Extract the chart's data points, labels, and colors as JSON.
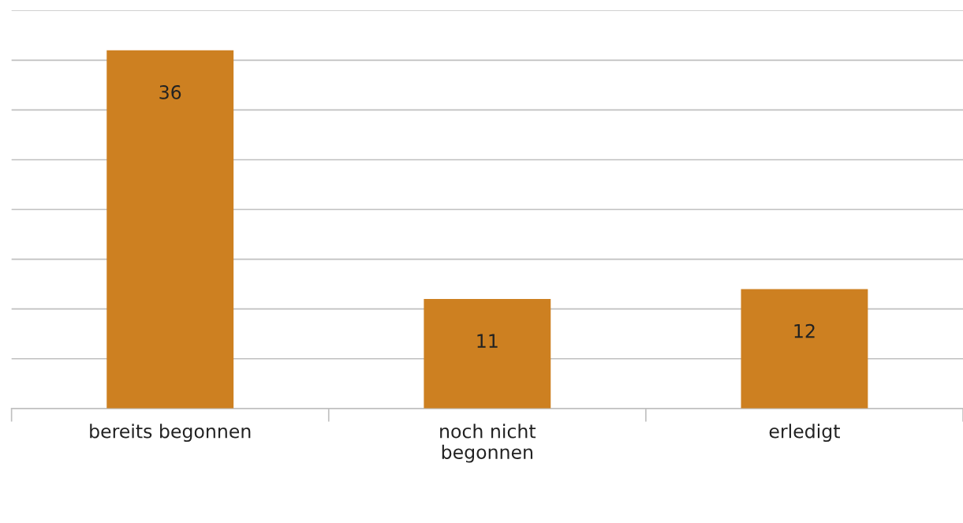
{
  "chart_data": {
    "type": "bar",
    "categories": [
      "bereits begonnen",
      "noch nicht begonnen",
      "erledigt"
    ],
    "values": [
      36,
      11,
      12
    ],
    "color": "#cd8021",
    "data_labels": true,
    "ylim": [
      0,
      40
    ],
    "yticks": [
      {
        "value": 0,
        "label": null
      },
      {
        "value": 5,
        "label": null
      },
      {
        "value": 10,
        "label": null
      },
      {
        "value": 15,
        "label": null
      },
      {
        "value": 20,
        "label": null
      },
      {
        "value": 25,
        "label": null
      },
      {
        "value": 30,
        "label": null
      },
      {
        "value": 35,
        "label": null
      },
      {
        "value": 40,
        "label": null
      }
    ],
    "grid": "y",
    "tick_labels": "x"
  }
}
